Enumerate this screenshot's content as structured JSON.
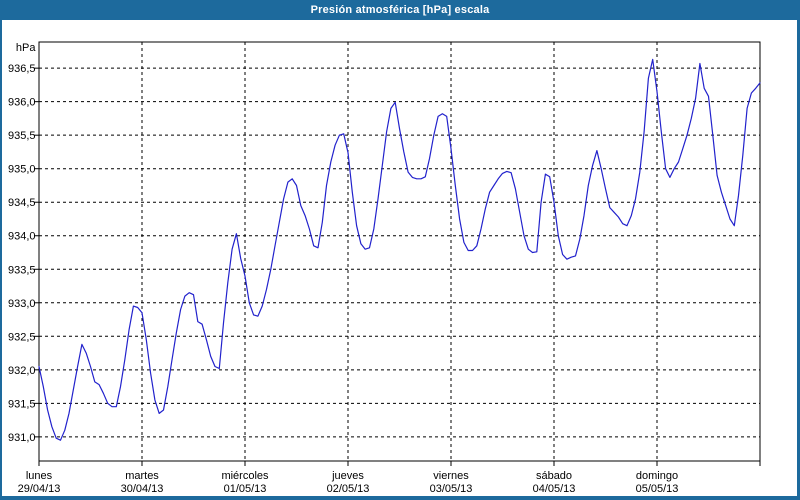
{
  "window": {
    "title": "Presión atmosférica [hPa] escala"
  },
  "colors": {
    "titlebar": "#1d6a9d",
    "frame": "#1d6a9d",
    "line": "#2222cc",
    "grid": "#000000",
    "background": "#ffffff",
    "text": "#000000"
  },
  "chart_data": {
    "type": "line",
    "title": "Presión atmosférica [hPa] escala",
    "ylabel": "hPa",
    "ylim": [
      930.64,
      936.89
    ],
    "y_ticks": [
      936.5,
      936.0,
      935.5,
      935.0,
      934.5,
      934.0,
      933.5,
      933.0,
      932.5,
      932.0,
      931.5,
      931.0
    ],
    "y_tick_labels": [
      "936,5",
      "936,0",
      "935,5",
      "935,0",
      "934,5",
      "934,0",
      "933,5",
      "933,0",
      "932,5",
      "932,0",
      "931,5",
      "931,0"
    ],
    "grid": true,
    "legend": "none",
    "x_days": [
      {
        "label": "lunes",
        "date": "29/04/13"
      },
      {
        "label": "martes",
        "date": "30/04/13"
      },
      {
        "label": "miércoles",
        "date": "01/05/13"
      },
      {
        "label": "jueves",
        "date": "02/05/13"
      },
      {
        "label": "viernes",
        "date": "03/05/13"
      },
      {
        "label": "sábado",
        "date": "04/05/13"
      },
      {
        "label": "domingo",
        "date": "05/05/13"
      }
    ],
    "hours_per_point": 1,
    "series": [
      {
        "name": "Presión atmosférica",
        "unit": "hPa",
        "values": [
          932.05,
          931.75,
          931.4,
          931.15,
          930.98,
          930.95,
          931.1,
          931.35,
          931.7,
          932.05,
          932.38,
          932.25,
          932.05,
          931.82,
          931.78,
          931.65,
          931.5,
          931.45,
          931.45,
          931.75,
          932.15,
          932.6,
          932.95,
          932.93,
          932.85,
          932.45,
          931.95,
          931.55,
          931.35,
          931.4,
          931.75,
          932.15,
          932.55,
          932.9,
          933.1,
          933.15,
          933.12,
          932.72,
          932.68,
          932.45,
          932.2,
          932.05,
          932.02,
          932.7,
          933.3,
          933.8,
          934.03,
          933.66,
          933.4,
          933.0,
          932.82,
          932.8,
          932.95,
          933.2,
          933.5,
          933.85,
          934.2,
          934.55,
          934.8,
          934.85,
          934.75,
          934.45,
          934.3,
          934.1,
          933.85,
          933.82,
          934.2,
          934.75,
          935.1,
          935.35,
          935.5,
          935.52,
          935.24,
          934.65,
          934.15,
          933.88,
          933.8,
          933.82,
          934.1,
          934.55,
          935.05,
          935.55,
          935.9,
          935.99,
          935.6,
          935.25,
          934.95,
          934.87,
          934.85,
          934.85,
          934.88,
          935.15,
          935.5,
          935.78,
          935.82,
          935.78,
          935.3,
          934.75,
          934.25,
          933.9,
          933.78,
          933.78,
          933.85,
          934.1,
          934.4,
          934.65,
          934.75,
          934.85,
          934.93,
          934.96,
          934.94,
          934.7,
          934.35,
          934.0,
          933.8,
          933.75,
          933.76,
          934.5,
          934.92,
          934.88,
          934.5,
          934.0,
          933.72,
          933.65,
          933.68,
          933.7,
          933.95,
          934.3,
          934.75,
          935.05,
          935.27,
          935.0,
          934.7,
          934.42,
          934.35,
          934.28,
          934.18,
          934.15,
          934.3,
          934.55,
          934.95,
          935.55,
          936.35,
          936.63,
          936.15,
          935.55,
          935.0,
          934.87,
          935.0,
          935.1,
          935.3,
          935.5,
          935.75,
          936.05,
          936.57,
          936.2,
          936.08,
          935.5,
          934.9,
          934.65,
          934.45,
          934.25,
          934.15,
          934.6,
          935.2,
          935.9,
          936.13,
          936.2,
          936.28
        ]
      }
    ]
  }
}
